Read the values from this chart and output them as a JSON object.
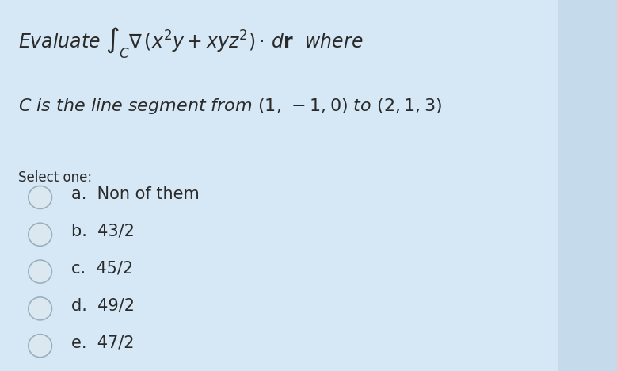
{
  "background_color": "#d6e8f5",
  "right_panel_color": "#c5daea",
  "fig_width": 7.79,
  "fig_height": 4.68,
  "select_label": "Select one:",
  "options": [
    "a.  Non of them",
    "b.  43/2",
    "c.  45/2",
    "d.  49/2",
    "e.  47/2"
  ],
  "title_fontsize": 17,
  "body_fontsize": 16,
  "option_fontsize": 15,
  "select_fontsize": 12,
  "text_color": "#2a2a2a",
  "circle_face_color": "#dce8f0",
  "circle_edge_color": "#9ab0be"
}
